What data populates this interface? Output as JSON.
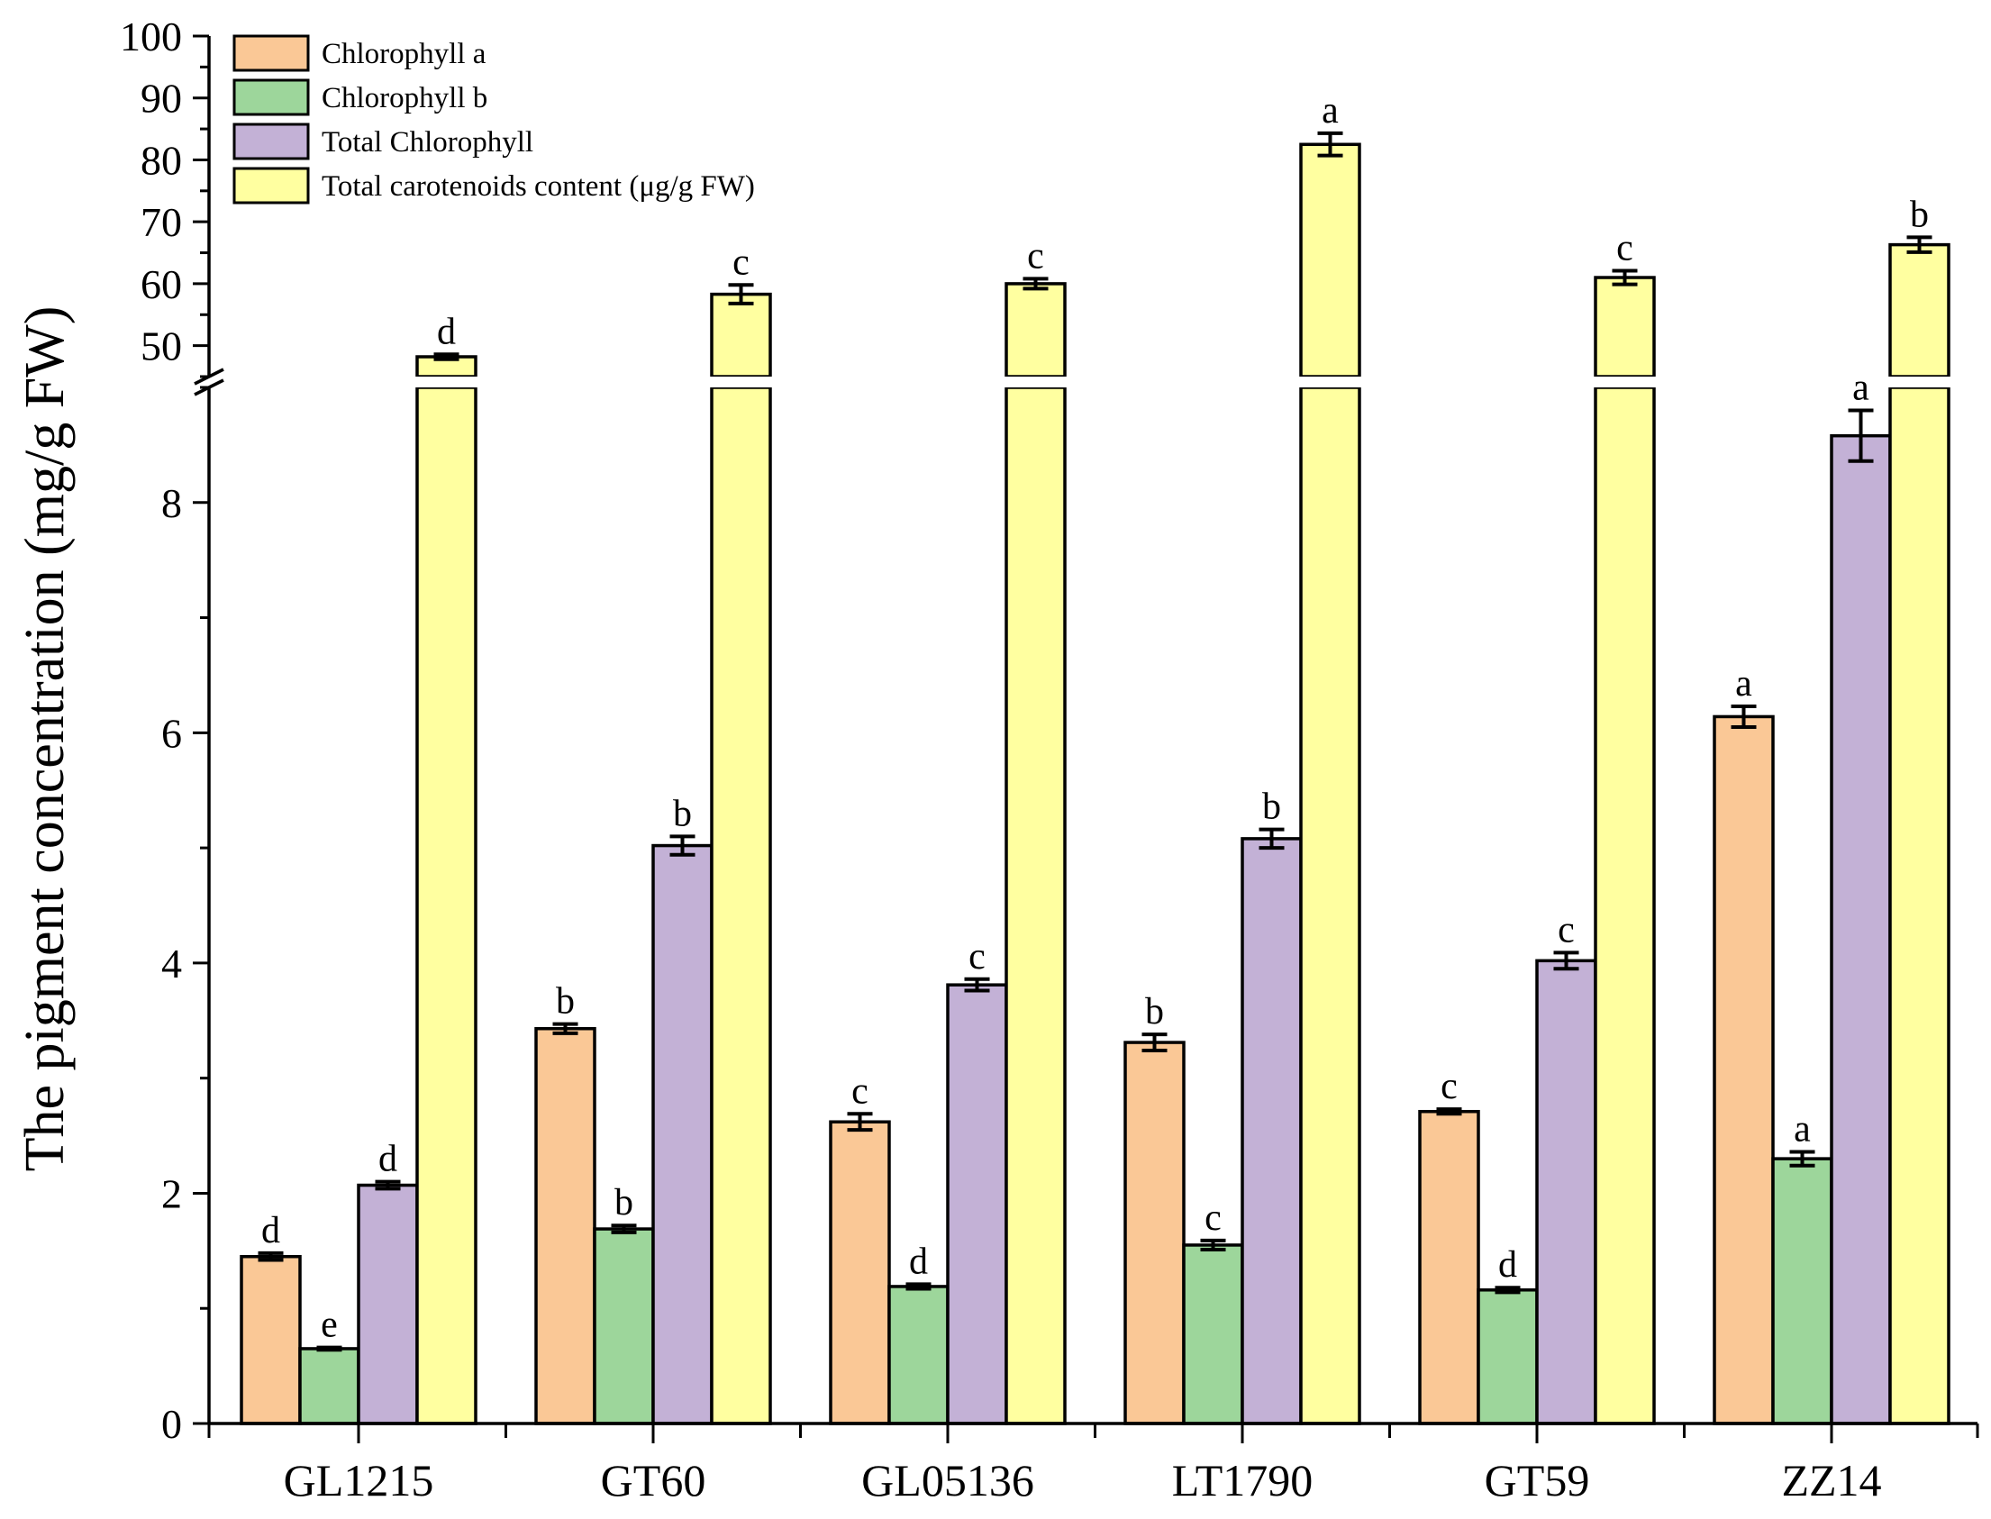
{
  "chart_data": {
    "type": "bar",
    "title": "",
    "xlabel": "",
    "ylabel": "The pigment concentration (mg/g FW)",
    "categories": [
      "GL1215",
      "GT60",
      "GL05136",
      "LT1790",
      "GT59",
      "ZZ14"
    ],
    "y_axis_break": {
      "lower_range": [
        0,
        9
      ],
      "upper_range": [
        45,
        100
      ],
      "lower_ticks": [
        "0",
        "2",
        "4",
        "6",
        "8"
      ],
      "upper_ticks": [
        "50",
        "60",
        "70",
        "80",
        "90",
        "100"
      ]
    },
    "series": [
      {
        "name": "Chlorophyll a",
        "color": "#FAC896",
        "values": [
          1.45,
          3.43,
          2.62,
          3.31,
          2.71,
          6.14
        ],
        "errors": [
          0.03,
          0.04,
          0.07,
          0.07,
          0.02,
          0.09
        ],
        "letters": [
          "d",
          "b",
          "c",
          "b",
          "c",
          "a"
        ]
      },
      {
        "name": "Chlorophyll b",
        "color": "#9DD69B",
        "values": [
          0.65,
          1.69,
          1.19,
          1.55,
          1.16,
          2.3
        ],
        "errors": [
          0.01,
          0.03,
          0.02,
          0.04,
          0.02,
          0.06
        ],
        "letters": [
          "e",
          "b",
          "d",
          "c",
          "d",
          "a"
        ]
      },
      {
        "name": "Total Chlorophyll",
        "color": "#C3B1D6",
        "values": [
          2.07,
          5.02,
          3.81,
          5.08,
          4.02,
          8.58
        ],
        "errors": [
          0.03,
          0.08,
          0.05,
          0.08,
          0.07,
          0.22
        ],
        "letters": [
          "d",
          "b",
          "c",
          "b",
          "c",
          "a"
        ]
      },
      {
        "name": "Total carotenoids content (μg/g FW)",
        "color": "#FFFFA0",
        "values": [
          48.2,
          58.3,
          60.0,
          82.5,
          61.0,
          66.3
        ],
        "errors": [
          0.4,
          1.5,
          0.8,
          1.8,
          1.1,
          1.2
        ],
        "letters": [
          "d",
          "c",
          "c",
          "a",
          "c",
          "b"
        ]
      }
    ]
  }
}
